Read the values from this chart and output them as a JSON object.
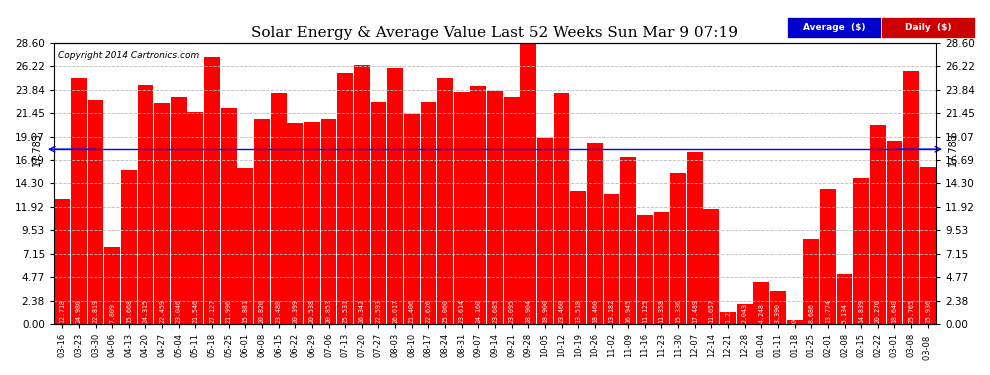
{
  "title": "Solar Energy & Average Value Last 52 Weeks Sun Mar 9 07:19",
  "copyright": "Copyright 2014 Cartronics.com",
  "average_line": 17.783,
  "average_label": "17.783",
  "bar_color": "#ff0000",
  "average_line_color": "#0000ff",
  "background_color": "#ffffff",
  "plot_bg_color": "#ffffff",
  "grid_color": "#bbbbbb",
  "ylim": [
    0,
    28.6
  ],
  "yticks": [
    0.0,
    2.38,
    4.77,
    7.15,
    9.53,
    11.92,
    14.3,
    16.69,
    19.07,
    21.45,
    23.84,
    26.22,
    28.6
  ],
  "legend_avg_color": "#0000cc",
  "legend_daily_color": "#cc0000",
  "bars": [
    {
      "label": "03-16",
      "value": 12.718
    },
    {
      "label": "03-23",
      "value": 24.98
    },
    {
      "label": "03-30",
      "value": 22.819
    },
    {
      "label": "04-06",
      "value": 7.809
    },
    {
      "label": "04-13",
      "value": 15.668
    },
    {
      "label": "04-20",
      "value": 24.315
    },
    {
      "label": "04-27",
      "value": 22.459
    },
    {
      "label": "05-04",
      "value": 23.046
    },
    {
      "label": "05-11",
      "value": 21.546
    },
    {
      "label": "05-18",
      "value": 27.127
    },
    {
      "label": "05-25",
      "value": 21.996
    },
    {
      "label": "06-01",
      "value": 15.881
    },
    {
      "label": "06-08",
      "value": 20.82
    },
    {
      "label": "06-15",
      "value": 23.488
    },
    {
      "label": "06-22",
      "value": 20.399
    },
    {
      "label": "06-29",
      "value": 20.538
    },
    {
      "label": "07-06",
      "value": 20.853
    },
    {
      "label": "07-13",
      "value": 25.531
    },
    {
      "label": "07-20",
      "value": 26.342
    },
    {
      "label": "07-27",
      "value": 22.593
    },
    {
      "label": "08-03",
      "value": 26.017
    },
    {
      "label": "08-10",
      "value": 21.406
    },
    {
      "label": "08-17",
      "value": 22.626
    },
    {
      "label": "08-24",
      "value": 25.06
    },
    {
      "label": "08-31",
      "value": 23.614
    },
    {
      "label": "09-07",
      "value": 24.16
    },
    {
      "label": "09-14",
      "value": 23.685
    },
    {
      "label": "09-21",
      "value": 23.095
    },
    {
      "label": "09-28",
      "value": 28.904
    },
    {
      "label": "10-05",
      "value": 18.9
    },
    {
      "label": "10-12",
      "value": 23.46
    },
    {
      "label": "10-19",
      "value": 13.518
    },
    {
      "label": "10-26",
      "value": 18.46
    },
    {
      "label": "11-02",
      "value": 13.182
    },
    {
      "label": "11-09",
      "value": 16.945
    },
    {
      "label": "11-16",
      "value": 11.125
    },
    {
      "label": "11-23",
      "value": 11.358
    },
    {
      "label": "11-30",
      "value": 15.336
    },
    {
      "label": "12-07",
      "value": 17.489
    },
    {
      "label": "12-14",
      "value": 11.657
    },
    {
      "label": "12-21",
      "value": 1.236
    },
    {
      "label": "12-28",
      "value": 2.043
    },
    {
      "label": "01-04",
      "value": 4.248
    },
    {
      "label": "01-11",
      "value": 3.39
    },
    {
      "label": "01-18",
      "value": 0.392
    },
    {
      "label": "01-25",
      "value": 8.686
    },
    {
      "label": "02-01",
      "value": 13.774
    },
    {
      "label": "02-08",
      "value": 5.134
    },
    {
      "label": "02-15",
      "value": 14.839
    },
    {
      "label": "02-22",
      "value": 20.27
    },
    {
      "label": "03-01",
      "value": 18.64
    },
    {
      "label": "03-08",
      "value": 25.765
    },
    {
      "label": "03-08 ",
      "value": 15.936
    }
  ]
}
